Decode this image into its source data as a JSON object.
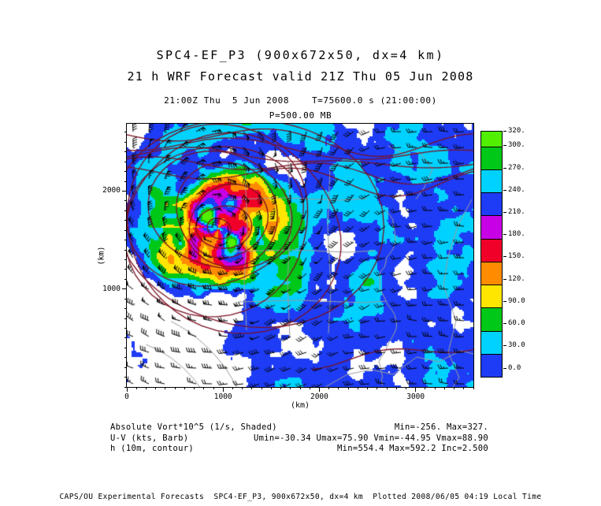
{
  "header": {
    "title1": "SPC4-EF_P3 (900x672x50, dx=4 km)",
    "title2": "21 h WRF Forecast valid 21Z Thu 05 Jun 2008",
    "info_line": "21:00Z Thu  5 Jun 2008    T=75600.0 s (21:00:00)",
    "level_line": "P=500.00 MB"
  },
  "axes": {
    "x": {
      "min": 0,
      "max": 3600,
      "ticks": [
        0,
        1000,
        2000,
        3000
      ],
      "minor_step": 100,
      "unit": "(km)"
    },
    "y": {
      "min": 0,
      "max": 2688,
      "ticks": [
        1000,
        2000
      ],
      "minor_step": 100,
      "unit": "(km)"
    }
  },
  "colorbar": {
    "boundaries_top_to_bottom": [
      320,
      300,
      270,
      240,
      210,
      180,
      150,
      120,
      90,
      60,
      30,
      0
    ],
    "labels_top_to_bottom": [
      "320.",
      "300.",
      "270.",
      "240.",
      "210.",
      "180.",
      "150.",
      "120.",
      "90.0",
      "60.0",
      "30.0",
      "0.0"
    ],
    "colors_top_to_bottom": [
      "#50f000",
      "#00c818",
      "#00d2ff",
      "#1e3cf5",
      "#c800e6",
      "#f00028",
      "#ff8c00",
      "#ffe600",
      "#00c818",
      "#00d2ff",
      "#1e3cf5"
    ]
  },
  "legend": {
    "rows": [
      {
        "label": "Absolute Vort*10^5 (1/s, Shaded)",
        "values": "Min=-256. Max=327."
      },
      {
        "label": "U-V (kts, Barb)",
        "values": "Umin=-30.34 Umax=75.90 Vmin=-44.95 Vmax=88.90"
      },
      {
        "label": "h (10m, contour)",
        "values": "Min=554.4 Max=592.2 Inc=2.500"
      }
    ]
  },
  "footer": {
    "text": "CAPS/OU Experimental Forecasts  SPC4-EF_P3, 900x672x50, dx=4 km  Plotted 2008/06/05 04:19 Local Time"
  },
  "chart_data": {
    "type": "heatmap",
    "title": "SPC4-EF_P3 (900x672x50, dx=4 km)",
    "subtitle": "21 h WRF Forecast valid 21Z Thu 05 Jun 2008",
    "valid_time": "21:00Z Thu 5 Jun 2008",
    "model_time": "T=75600.0 s (21:00:00)",
    "level": "P=500.00 MB",
    "xlabel": "(km)",
    "ylabel": "(km)",
    "xlim": [
      0,
      3600
    ],
    "ylim": [
      0,
      2688
    ],
    "x_ticks": [
      0,
      1000,
      2000,
      3000
    ],
    "y_ticks": [
      1000,
      2000
    ],
    "shaded_field": {
      "name": "Absolute Vort*10^5 (1/s, Shaded)",
      "min": -256,
      "max": 327
    },
    "barb_field": {
      "name": "U-V (kts, Barb)",
      "umin": -30.34,
      "umax": 75.9,
      "vmin": -44.95,
      "vmax": 88.9
    },
    "contour_field": {
      "name": "h (10m, contour)",
      "min": 554.4,
      "max": 592.2,
      "inc": 2.5
    },
    "colorbar_boundaries": [
      0,
      30,
      60,
      90,
      120,
      150,
      180,
      210,
      240,
      270,
      300,
      320
    ],
    "legend_position": "right",
    "grid": false
  }
}
